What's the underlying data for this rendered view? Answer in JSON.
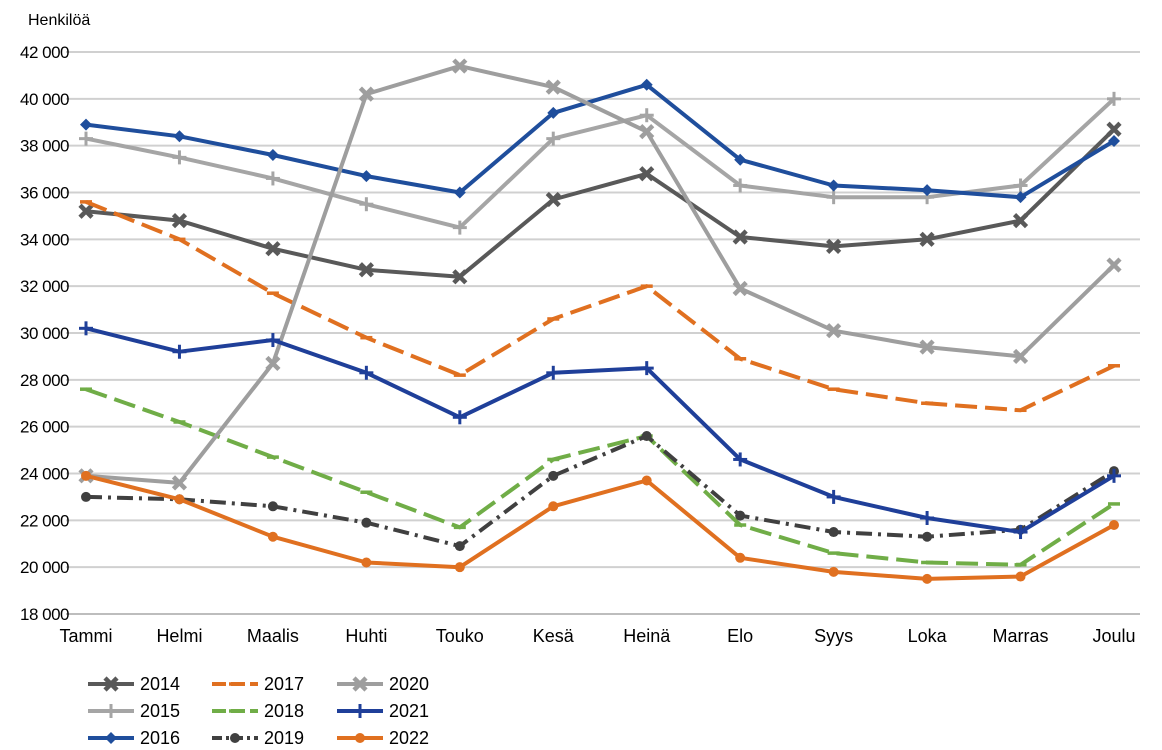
{
  "chart_data": {
    "type": "line",
    "ylabel": "Henkilöä",
    "xlabel": "",
    "ylim": [
      18000,
      42000
    ],
    "yticks": [
      {
        "value": 18000,
        "label": "18 000"
      },
      {
        "value": 20000,
        "label": "20 000"
      },
      {
        "value": 22000,
        "label": "22 000"
      },
      {
        "value": 24000,
        "label": "24 000"
      },
      {
        "value": 26000,
        "label": "26 000"
      },
      {
        "value": 28000,
        "label": "28 000"
      },
      {
        "value": 30000,
        "label": "30 000"
      },
      {
        "value": 32000,
        "label": "32 000"
      },
      {
        "value": 34000,
        "label": "34 000"
      },
      {
        "value": 36000,
        "label": "36 000"
      },
      {
        "value": 38000,
        "label": "38 000"
      },
      {
        "value": 40000,
        "label": "40 000"
      },
      {
        "value": 42000,
        "label": "42 000"
      }
    ],
    "categories": [
      "Tammi",
      "Helmi",
      "Maalis",
      "Huhti",
      "Touko",
      "Kesä",
      "Heinä",
      "Elo",
      "Syys",
      "Loka",
      "Marras",
      "Joulu"
    ],
    "grid": true,
    "legend_position": "bottom-left",
    "series": [
      {
        "name": "2014",
        "color": "#595959",
        "marker": "x",
        "dash": "solid",
        "values": [
          35200,
          34800,
          33600,
          32700,
          32400,
          35700,
          36800,
          34100,
          33700,
          34000,
          34800,
          38700
        ]
      },
      {
        "name": "2015",
        "color": "#a5a5a5",
        "marker": "plus",
        "dash": "solid",
        "values": [
          38300,
          37500,
          36600,
          35500,
          34500,
          38300,
          39300,
          36300,
          35800,
          35800,
          36300,
          40000
        ]
      },
      {
        "name": "2016",
        "color": "#1f4e9c",
        "marker": "diamond",
        "dash": "solid",
        "values": [
          38900,
          38400,
          37600,
          36700,
          36000,
          39400,
          40600,
          37400,
          36300,
          36100,
          35800,
          38200
        ]
      },
      {
        "name": "2017",
        "color": "#e07020",
        "marker": "dash",
        "dash": "longdash",
        "values": [
          35600,
          34000,
          31700,
          29800,
          28200,
          30600,
          32000,
          28900,
          27600,
          27000,
          26700,
          28600
        ]
      },
      {
        "name": "2018",
        "color": "#70ad47",
        "marker": "dash",
        "dash": "longdash",
        "values": [
          27600,
          26200,
          24700,
          23200,
          21700,
          24600,
          25600,
          21800,
          20600,
          20200,
          20100,
          22700
        ]
      },
      {
        "name": "2019",
        "color": "#404040",
        "marker": "dot",
        "dash": "dashdot",
        "values": [
          23000,
          22900,
          22600,
          21900,
          20900,
          23900,
          25600,
          22200,
          21500,
          21300,
          21600,
          24100
        ]
      },
      {
        "name": "2020",
        "color": "#9e9e9e",
        "marker": "x",
        "dash": "solid",
        "values": [
          23900,
          23600,
          28700,
          40200,
          41400,
          40500,
          38600,
          31900,
          30100,
          29400,
          29000,
          32900
        ]
      },
      {
        "name": "2021",
        "color": "#1f3f99",
        "marker": "plus",
        "dash": "solid",
        "values": [
          30200,
          29200,
          29700,
          28300,
          26400,
          28300,
          28500,
          24600,
          23000,
          22100,
          21500,
          23900
        ]
      },
      {
        "name": "2022",
        "color": "#e07020",
        "marker": "dot",
        "dash": "solid",
        "values": [
          23900,
          22900,
          21300,
          20200,
          20000,
          22600,
          23700,
          20400,
          19800,
          19500,
          19600,
          21800
        ]
      }
    ]
  }
}
